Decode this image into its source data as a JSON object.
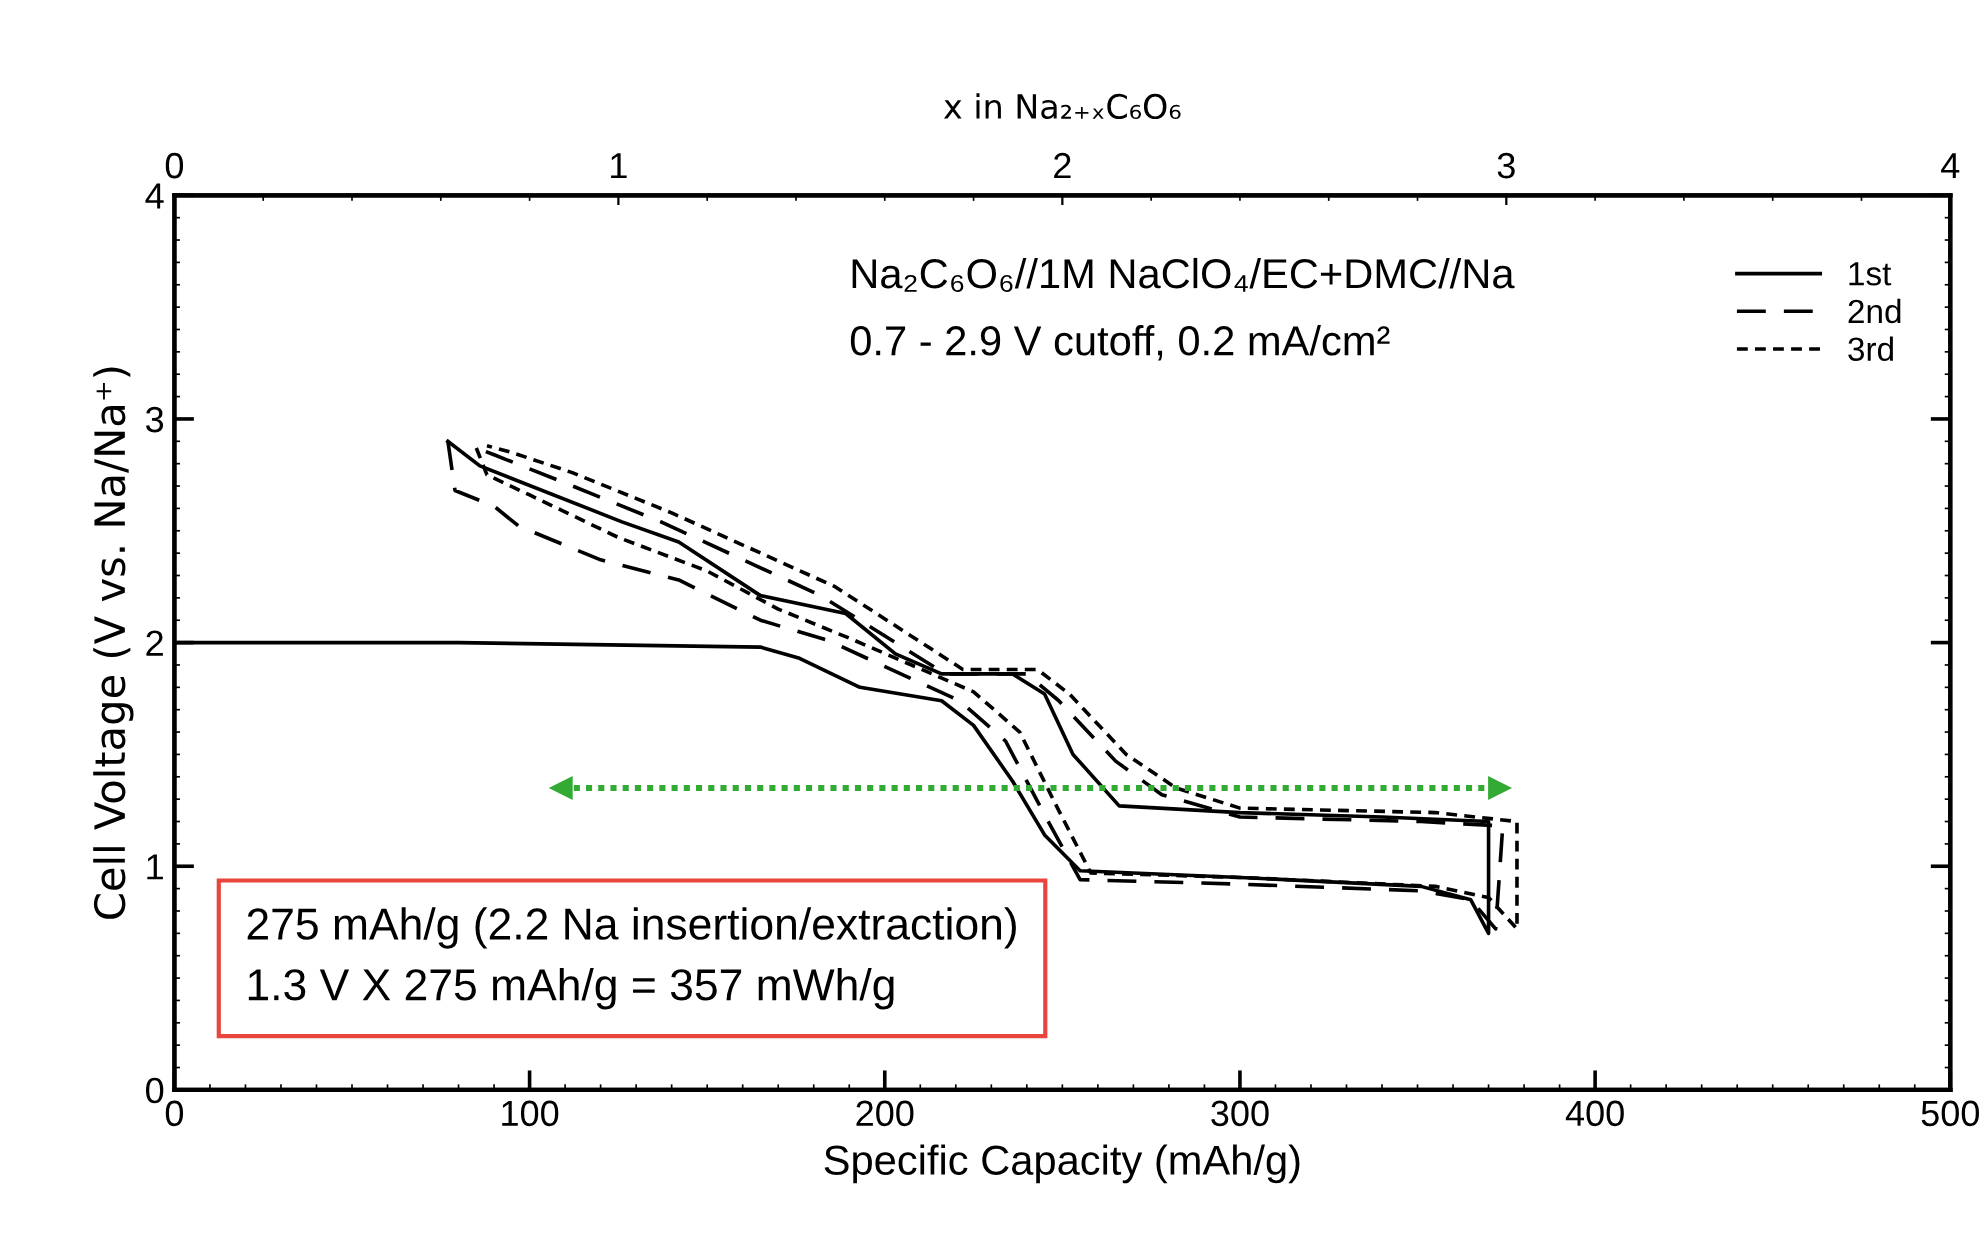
{
  "chart_data": {
    "type": "line",
    "xlabel": "Specific Capacity (mAh/g)",
    "ylabel": "Cell Voltage (V vs. Na/Na⁺)",
    "x2label": "x in Na₂₊ₓC₆O₆",
    "xlim": [
      0,
      500
    ],
    "xticks": [
      0,
      100,
      200,
      300,
      400,
      500
    ],
    "ylim": [
      0,
      4
    ],
    "yticks": [
      0,
      1,
      2,
      3,
      4
    ],
    "x2lim": [
      0,
      4
    ],
    "x2ticks": [
      0,
      1,
      2,
      3,
      4
    ],
    "legend": "top right",
    "grid": false,
    "series": [
      {
        "name": "1st",
        "color": "#000000",
        "line_style": "solid",
        "x": [
          0,
          80,
          165,
          176,
          193,
          216,
          225,
          236,
          245,
          255,
          300,
          351,
          365,
          370,
          370,
          340,
          300,
          266,
          253,
          245,
          236,
          216,
          203,
          189,
          165,
          142,
          126,
          86,
          77
        ],
        "values": [
          2.0,
          2.0,
          1.98,
          1.93,
          1.8,
          1.74,
          1.63,
          1.38,
          1.14,
          0.98,
          0.95,
          0.91,
          0.85,
          0.7,
          1.2,
          1.22,
          1.24,
          1.27,
          1.5,
          1.77,
          1.86,
          1.86,
          1.95,
          2.13,
          2.21,
          2.45,
          2.54,
          2.79,
          2.9
        ]
      },
      {
        "name": "2nd",
        "color": "#000000",
        "line_style": "dashed",
        "x": [
          77,
          79,
          90,
          97,
          120,
          142,
          165,
          184,
          221,
          234,
          245,
          255,
          300,
          351,
          365,
          372,
          374,
          351,
          300,
          278,
          265,
          249,
          240,
          217,
          182,
          137,
          109,
          90,
          85
        ],
        "values": [
          2.9,
          2.68,
          2.61,
          2.52,
          2.37,
          2.28,
          2.1,
          2.01,
          1.74,
          1.56,
          1.23,
          0.94,
          0.92,
          0.89,
          0.85,
          0.72,
          1.18,
          1.2,
          1.22,
          1.32,
          1.47,
          1.74,
          1.86,
          1.86,
          2.21,
          2.54,
          2.72,
          2.84,
          2.87
        ]
      },
      {
        "name": "3rd",
        "color": "#000000",
        "line_style": "dotted",
        "x": [
          85,
          88,
          100,
          125,
          150,
          170,
          190,
          225,
          238,
          248,
          258,
          300,
          355,
          370,
          378,
          378,
          355,
          300,
          282,
          268,
          252,
          243,
          222,
          186,
          140,
          112,
          95,
          88
        ],
        "values": [
          2.87,
          2.75,
          2.66,
          2.47,
          2.32,
          2.15,
          2.02,
          1.78,
          1.6,
          1.28,
          0.97,
          0.95,
          0.91,
          0.86,
          0.72,
          1.2,
          1.24,
          1.26,
          1.35,
          1.5,
          1.77,
          1.88,
          1.88,
          2.25,
          2.58,
          2.76,
          2.85,
          2.88
        ]
      },
      {
        "type": "line",
        "color": "#33aa33",
        "line_style": "dotted",
        "marker": "triangle",
        "x": [
          109,
          373
        ],
        "values": [
          1.35,
          1.35
        ]
      }
    ],
    "annotations": [
      "Na₂C₆O₆//1M NaClO₄/EC+DMC//Na",
      "0.7 - 2.9 V cutoff, 0.2 mA/cm²",
      "275 mAh/g (2.2 Na insertion/extraction)\n1.3 V X 275 mAh/g = 357 mWh/g"
    ]
  }
}
